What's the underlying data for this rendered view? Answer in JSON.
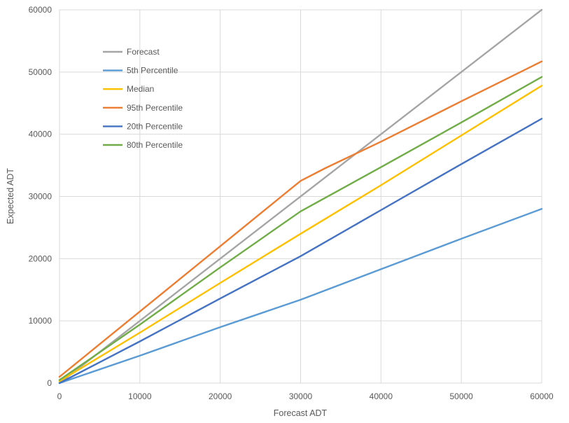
{
  "chart_data": {
    "type": "line",
    "title": "",
    "xlabel": "Forecast ADT",
    "ylabel": "Expected ADT",
    "xlim": [
      0,
      60000
    ],
    "ylim": [
      0,
      60000
    ],
    "x_ticks": [
      0,
      10000,
      20000,
      30000,
      40000,
      50000,
      60000
    ],
    "y_ticks": [
      0,
      10000,
      20000,
      30000,
      40000,
      50000,
      60000
    ],
    "grid": true,
    "legend_position": "top-left",
    "series": [
      {
        "name": "Forecast",
        "color": "#A5A5A5",
        "points": [
          [
            0,
            0
          ],
          [
            60000,
            60000
          ]
        ]
      },
      {
        "name": "5th Percentile",
        "color": "#5B9BD5",
        "points": [
          [
            0,
            0
          ],
          [
            10000,
            4400
          ],
          [
            20000,
            9000
          ],
          [
            30000,
            13400
          ],
          [
            40000,
            18300
          ],
          [
            50000,
            23200
          ],
          [
            60000,
            28000
          ]
        ]
      },
      {
        "name": "Median",
        "color": "#FFC000",
        "points": [
          [
            0,
            300
          ],
          [
            10000,
            8100
          ],
          [
            20000,
            16100
          ],
          [
            30000,
            24000
          ],
          [
            40000,
            31800
          ],
          [
            50000,
            39800
          ],
          [
            60000,
            47800
          ]
        ]
      },
      {
        "name": "95th Percentile",
        "color": "#ED7D31",
        "points": [
          [
            0,
            1000
          ],
          [
            10000,
            11500
          ],
          [
            20000,
            22000
          ],
          [
            28000,
            30400
          ],
          [
            30000,
            32500
          ],
          [
            33000,
            34500
          ],
          [
            40000,
            38800
          ],
          [
            50000,
            45300
          ],
          [
            60000,
            51700
          ]
        ]
      },
      {
        "name": "20th Percentile",
        "color": "#4472C4",
        "points": [
          [
            0,
            0
          ],
          [
            10000,
            6700
          ],
          [
            20000,
            13600
          ],
          [
            30000,
            20400
          ],
          [
            40000,
            27800
          ],
          [
            50000,
            35200
          ],
          [
            60000,
            42500
          ]
        ]
      },
      {
        "name": "80th Percentile",
        "color": "#70AD47",
        "points": [
          [
            0,
            500
          ],
          [
            10000,
            9400
          ],
          [
            20000,
            18600
          ],
          [
            30000,
            27600
          ],
          [
            40000,
            34700
          ],
          [
            50000,
            41900
          ],
          [
            60000,
            49200
          ]
        ]
      }
    ]
  }
}
